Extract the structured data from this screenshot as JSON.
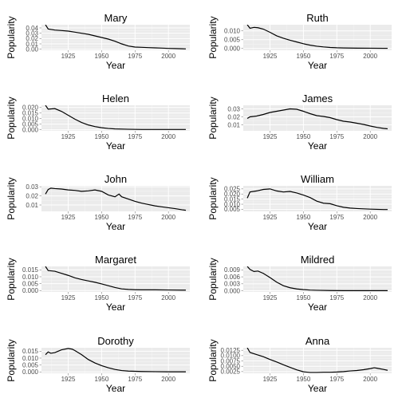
{
  "chart_data": [
    {
      "type": "line",
      "title": "Mary",
      "xlabel": "Year",
      "ylabel": "Popularity",
      "xlim": [
        1905,
        2016
      ],
      "ylim": [
        -0.002,
        0.046
      ],
      "xticks": [
        1925,
        1950,
        1975,
        2000
      ],
      "yticks": [
        0.0,
        0.01,
        0.02,
        0.03,
        0.04
      ],
      "ytick_labels": [
        "0.00",
        "0.01",
        "0.02",
        "0.03",
        "0.04"
      ],
      "grid": true,
      "x": [
        1908,
        1910,
        1915,
        1920,
        1925,
        1930,
        1935,
        1940,
        1945,
        1950,
        1955,
        1960,
        1965,
        1970,
        1975,
        1980,
        1985,
        1990,
        1995,
        2000,
        2005,
        2010,
        2013
      ],
      "y": [
        0.046,
        0.038,
        0.036,
        0.035,
        0.034,
        0.032,
        0.03,
        0.028,
        0.025,
        0.022,
        0.019,
        0.015,
        0.01,
        0.006,
        0.004,
        0.0035,
        0.003,
        0.0025,
        0.002,
        0.0015,
        0.0012,
        0.0008,
        0.0005
      ]
    },
    {
      "type": "line",
      "title": "Ruth",
      "xlabel": "Year",
      "ylabel": "Popularity",
      "xlim": [
        1905,
        2016
      ],
      "ylim": [
        -0.001,
        0.0135
      ],
      "xticks": [
        1925,
        1950,
        1975,
        2000
      ],
      "yticks": [
        0.0,
        0.005,
        0.01
      ],
      "ytick_labels": [
        "0.000",
        "0.005",
        "0.010"
      ],
      "grid": true,
      "x": [
        1908,
        1910,
        1913,
        1916,
        1920,
        1925,
        1930,
        1935,
        1940,
        1945,
        1950,
        1955,
        1960,
        1965,
        1970,
        1975,
        1980,
        1990,
        2000,
        2010,
        2013
      ],
      "y": [
        0.0135,
        0.0115,
        0.012,
        0.0118,
        0.011,
        0.0092,
        0.0072,
        0.0058,
        0.0047,
        0.0037,
        0.0027,
        0.0019,
        0.0013,
        0.0009,
        0.0006,
        0.0004,
        0.0003,
        0.0002,
        0.00015,
        0.0001,
        0.0001
      ]
    },
    {
      "type": "line",
      "title": "Helen",
      "xlabel": "Year",
      "ylabel": "Popularity",
      "xlim": [
        1905,
        2016
      ],
      "ylim": [
        -0.001,
        0.022
      ],
      "xticks": [
        1925,
        1950,
        1975,
        2000
      ],
      "yticks": [
        0.0,
        0.005,
        0.01,
        0.015,
        0.02
      ],
      "ytick_labels": [
        "0.000",
        "0.005",
        "0.010",
        "0.015",
        "0.020"
      ],
      "grid": true,
      "x": [
        1908,
        1910,
        1915,
        1920,
        1925,
        1930,
        1935,
        1940,
        1945,
        1950,
        1955,
        1960,
        1970,
        1980,
        1990,
        2000,
        2010,
        2013
      ],
      "y": [
        0.022,
        0.0185,
        0.019,
        0.0165,
        0.013,
        0.0095,
        0.0065,
        0.0043,
        0.0028,
        0.0018,
        0.0011,
        0.0007,
        0.0004,
        0.0002,
        0.0002,
        0.0002,
        0.0002,
        0.0002
      ]
    },
    {
      "type": "line",
      "title": "James",
      "xlabel": "Year",
      "ylabel": "Popularity",
      "xlim": [
        1905,
        2016
      ],
      "ylim": [
        0.0025,
        0.0345
      ],
      "xticks": [
        1925,
        1950,
        1975,
        2000
      ],
      "yticks": [
        0.01,
        0.02,
        0.03
      ],
      "ytick_labels": [
        "0.01",
        "0.02",
        "0.03"
      ],
      "grid": true,
      "x": [
        1908,
        1910,
        1915,
        1920,
        1925,
        1930,
        1935,
        1940,
        1945,
        1950,
        1955,
        1960,
        1965,
        1970,
        1975,
        1980,
        1985,
        1990,
        1995,
        2000,
        2005,
        2010,
        2013
      ],
      "y": [
        0.018,
        0.02,
        0.021,
        0.023,
        0.0255,
        0.027,
        0.0285,
        0.03,
        0.0295,
        0.027,
        0.024,
        0.0215,
        0.0205,
        0.019,
        0.0165,
        0.0145,
        0.0135,
        0.012,
        0.0105,
        0.0085,
        0.0068,
        0.0055,
        0.005
      ]
    },
    {
      "type": "line",
      "title": "John",
      "xlabel": "Year",
      "ylabel": "Popularity",
      "xlim": [
        1905,
        2016
      ],
      "ylim": [
        0.003,
        0.031
      ],
      "xticks": [
        1925,
        1950,
        1975,
        2000
      ],
      "yticks": [
        0.01,
        0.02,
        0.03
      ],
      "ytick_labels": [
        "0.01",
        "0.02",
        "0.03"
      ],
      "grid": true,
      "x": [
        1908,
        1910,
        1912,
        1915,
        1920,
        1925,
        1930,
        1935,
        1940,
        1945,
        1950,
        1955,
        1960,
        1963,
        1965,
        1970,
        1975,
        1980,
        1985,
        1990,
        1995,
        2000,
        2005,
        2010,
        2013
      ],
      "y": [
        0.022,
        0.027,
        0.0285,
        0.028,
        0.0275,
        0.0265,
        0.026,
        0.025,
        0.0255,
        0.0265,
        0.025,
        0.021,
        0.019,
        0.022,
        0.019,
        0.0165,
        0.014,
        0.012,
        0.0105,
        0.009,
        0.008,
        0.007,
        0.006,
        0.0048,
        0.0042
      ]
    },
    {
      "type": "line",
      "title": "William",
      "xlabel": "Year",
      "ylabel": "Popularity",
      "xlim": [
        1905,
        2016
      ],
      "ylim": [
        0.003,
        0.028
      ],
      "xticks": [
        1925,
        1950,
        1975,
        2000
      ],
      "yticks": [
        0.005,
        0.01,
        0.015,
        0.02,
        0.025
      ],
      "ytick_labels": [
        "0.005",
        "0.010",
        "0.015",
        "0.020",
        "0.025"
      ],
      "grid": true,
      "x": [
        1908,
        1910,
        1915,
        1920,
        1925,
        1930,
        1935,
        1940,
        1945,
        1950,
        1955,
        1960,
        1965,
        1970,
        1975,
        1980,
        1985,
        1990,
        1995,
        2000,
        2005,
        2010,
        2013
      ],
      "y": [
        0.016,
        0.022,
        0.023,
        0.0245,
        0.025,
        0.023,
        0.022,
        0.0225,
        0.021,
        0.019,
        0.0165,
        0.013,
        0.011,
        0.0105,
        0.0085,
        0.007,
        0.0062,
        0.0058,
        0.0055,
        0.0052,
        0.005,
        0.0048,
        0.0048
      ]
    },
    {
      "type": "line",
      "title": "Margaret",
      "xlabel": "Year",
      "ylabel": "Popularity",
      "xlim": [
        1905,
        2016
      ],
      "ylim": [
        -0.001,
        0.0175
      ],
      "xticks": [
        1925,
        1950,
        1975,
        2000
      ],
      "yticks": [
        0.0,
        0.005,
        0.01,
        0.015
      ],
      "ytick_labels": [
        "0.000",
        "0.005",
        "0.010",
        "0.015"
      ],
      "grid": true,
      "x": [
        1908,
        1910,
        1915,
        1920,
        1925,
        1930,
        1935,
        1940,
        1945,
        1950,
        1955,
        1960,
        1965,
        1970,
        1975,
        1980,
        1990,
        2000,
        2010,
        2013
      ],
      "y": [
        0.0175,
        0.0145,
        0.014,
        0.0125,
        0.011,
        0.0092,
        0.008,
        0.007,
        0.006,
        0.0048,
        0.0035,
        0.0022,
        0.0012,
        0.0008,
        0.0006,
        0.0005,
        0.0005,
        0.0004,
        0.0003,
        0.0003
      ]
    },
    {
      "type": "line",
      "title": "Mildred",
      "xlabel": "Year",
      "ylabel": "Popularity",
      "xlim": [
        1905,
        2016
      ],
      "ylim": [
        -0.0005,
        0.0105
      ],
      "xticks": [
        1925,
        1950,
        1975,
        2000
      ],
      "yticks": [
        0.0,
        0.003,
        0.006,
        0.009
      ],
      "ytick_labels": [
        "0.000",
        "0.003",
        "0.006",
        "0.009"
      ],
      "grid": true,
      "x": [
        1908,
        1910,
        1913,
        1916,
        1920,
        1925,
        1930,
        1935,
        1940,
        1945,
        1950,
        1955,
        1960,
        1970,
        1980,
        1990,
        2000,
        2010,
        2013
      ],
      "y": [
        0.0105,
        0.0092,
        0.0083,
        0.0085,
        0.0075,
        0.0057,
        0.0037,
        0.0022,
        0.0013,
        0.0008,
        0.0005,
        0.0003,
        0.0002,
        0.0001,
        5e-05,
        5e-05,
        5e-05,
        5e-05,
        5e-05
      ]
    },
    {
      "type": "line",
      "title": "Dorothy",
      "xlabel": "Year",
      "ylabel": "Popularity",
      "xlim": [
        1905,
        2016
      ],
      "ylim": [
        -0.001,
        0.0175
      ],
      "xticks": [
        1925,
        1950,
        1975,
        2000
      ],
      "yticks": [
        0.0,
        0.005,
        0.01,
        0.015
      ],
      "ytick_labels": [
        "0.000",
        "0.005",
        "0.010",
        "0.015"
      ],
      "grid": true,
      "x": [
        1908,
        1910,
        1912,
        1915,
        1920,
        1925,
        1928,
        1930,
        1935,
        1940,
        1945,
        1950,
        1955,
        1960,
        1965,
        1970,
        1980,
        1990,
        2000,
        2010,
        2013
      ],
      "y": [
        0.0125,
        0.0145,
        0.0135,
        0.014,
        0.016,
        0.017,
        0.0165,
        0.0155,
        0.0125,
        0.009,
        0.0065,
        0.0045,
        0.003,
        0.0018,
        0.001,
        0.0006,
        0.0003,
        0.0002,
        0.0001,
        0.0001,
        0.0001
      ]
    },
    {
      "type": "line",
      "title": "Anna",
      "xlabel": "Year",
      "ylabel": "Popularity",
      "xlim": [
        1905,
        2016
      ],
      "ylim": [
        0.0017,
        0.0137
      ],
      "xticks": [
        1925,
        1950,
        1975,
        2000
      ],
      "yticks": [
        0.0025,
        0.005,
        0.0075,
        0.01,
        0.0125
      ],
      "ytick_labels": [
        "0.0025",
        "0.0050",
        "0.0075",
        "0.0100",
        "0.0125"
      ],
      "grid": true,
      "x": [
        1908,
        1910,
        1915,
        1920,
        1925,
        1930,
        1935,
        1940,
        1945,
        1950,
        1955,
        1960,
        1965,
        1970,
        1975,
        1980,
        1985,
        1990,
        1995,
        2000,
        2003,
        2005,
        2010,
        2013
      ],
      "y": [
        0.0137,
        0.0115,
        0.0105,
        0.0095,
        0.0082,
        0.007,
        0.0057,
        0.0045,
        0.0033,
        0.0024,
        0.0021,
        0.0021,
        0.0022,
        0.0022,
        0.0023,
        0.0025,
        0.0028,
        0.003,
        0.0034,
        0.0039,
        0.0043,
        0.0041,
        0.0035,
        0.0031
      ]
    }
  ]
}
